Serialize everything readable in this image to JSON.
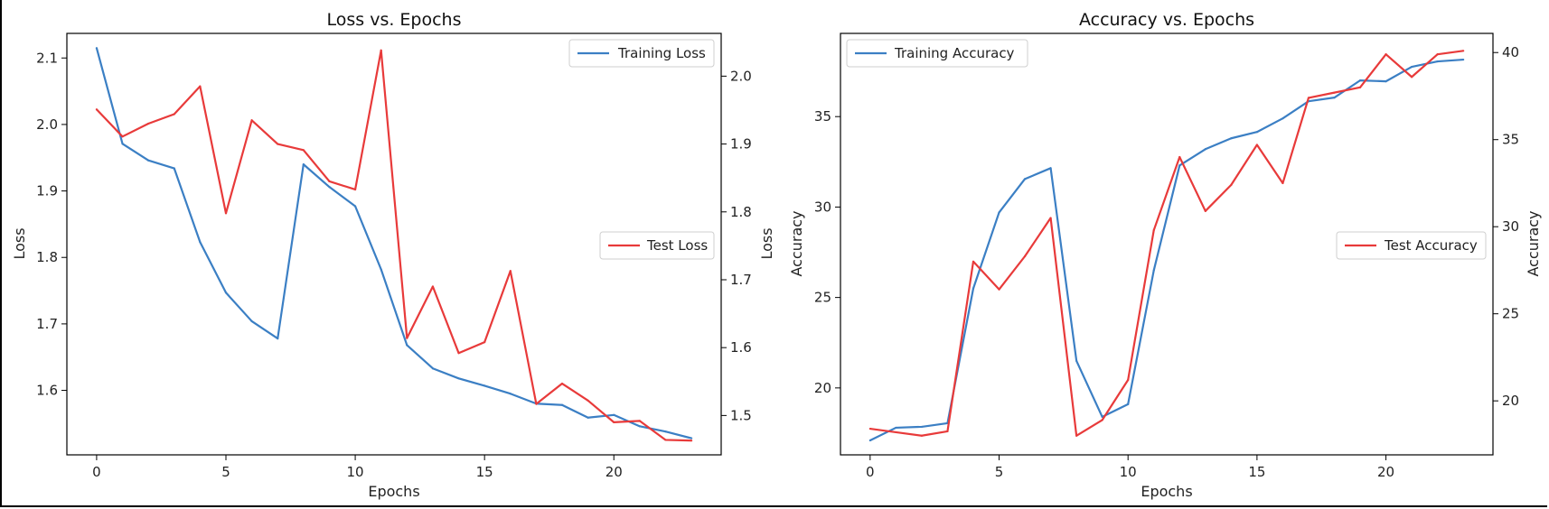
{
  "chart_data": [
    {
      "type": "line",
      "title": "Loss vs. Epochs",
      "xlabel": "Epochs",
      "xlim": [
        -1.15,
        24.15
      ],
      "xticks": [
        0,
        5,
        10,
        15,
        20
      ],
      "x": [
        0,
        1,
        2,
        3,
        4,
        5,
        6,
        7,
        8,
        9,
        10,
        11,
        12,
        13,
        14,
        15,
        16,
        17,
        18,
        19,
        20,
        21,
        22,
        23
      ],
      "left_axis": {
        "ylabel": "Loss",
        "ylim": [
          1.503,
          2.137
        ],
        "yticks": [
          1.6,
          1.7,
          1.8,
          1.9,
          2.0,
          2.1
        ],
        "series": {
          "name": "Training Loss",
          "color": "#3b7fc4",
          "legend_loc": "upper right",
          "values": [
            2.115,
            1.971,
            1.946,
            1.934,
            1.823,
            1.747,
            1.704,
            1.678,
            1.94,
            1.906,
            1.877,
            1.782,
            1.668,
            1.633,
            1.618,
            1.607,
            1.595,
            1.58,
            1.578,
            1.559,
            1.563,
            1.546,
            1.538,
            1.528
          ]
        }
      },
      "right_axis": {
        "ylabel": "Loss",
        "ylim": [
          1.442,
          2.063
        ],
        "yticks": [
          1.5,
          1.6,
          1.7,
          1.8,
          1.9,
          2.0
        ],
        "series": {
          "name": "Test Loss",
          "color": "#e83a3a",
          "legend_loc": "center right",
          "values": [
            1.951,
            1.911,
            1.93,
            1.944,
            1.985,
            1.798,
            1.935,
            1.9,
            1.891,
            1.845,
            1.833,
            2.038,
            1.614,
            1.69,
            1.592,
            1.608,
            1.713,
            1.517,
            1.547,
            1.522,
            1.49,
            1.492,
            1.464,
            1.463
          ]
        }
      }
    },
    {
      "type": "line",
      "title": "Accuracy vs. Epochs",
      "xlabel": "Epochs",
      "xlim": [
        -1.15,
        24.15
      ],
      "xticks": [
        0,
        5,
        10,
        15,
        20
      ],
      "x": [
        0,
        1,
        2,
        3,
        4,
        5,
        6,
        7,
        8,
        9,
        10,
        11,
        12,
        13,
        14,
        15,
        16,
        17,
        18,
        19,
        20,
        21,
        22,
        23
      ],
      "left_axis": {
        "ylabel": "Accuracy",
        "ylim": [
          16.3,
          39.6
        ],
        "yticks": [
          20,
          25,
          30,
          35
        ],
        "series": {
          "name": "Training Accuracy",
          "color": "#3b7fc4",
          "legend_loc": "upper left",
          "values": [
            17.1,
            17.8,
            17.85,
            18.05,
            25.5,
            29.7,
            31.55,
            32.15,
            21.5,
            18.4,
            19.1,
            26.5,
            32.3,
            33.2,
            33.8,
            34.15,
            34.9,
            35.85,
            36.05,
            37.0,
            36.95,
            37.75,
            38.05,
            38.15
          ]
        }
      },
      "right_axis": {
        "ylabel": "Accuracy",
        "ylim": [
          16.9,
          41.1
        ],
        "yticks": [
          20,
          25,
          30,
          35,
          40
        ],
        "series": {
          "name": "Test Accuracy",
          "color": "#e83a3a",
          "legend_loc": "center right",
          "values": [
            18.4,
            18.2,
            18.0,
            18.25,
            28.0,
            26.4,
            28.3,
            30.5,
            18.0,
            18.9,
            21.2,
            29.8,
            34.0,
            30.9,
            32.4,
            34.7,
            32.5,
            37.4,
            37.7,
            38.0,
            39.9,
            38.6,
            39.9,
            40.1
          ]
        }
      }
    }
  ]
}
